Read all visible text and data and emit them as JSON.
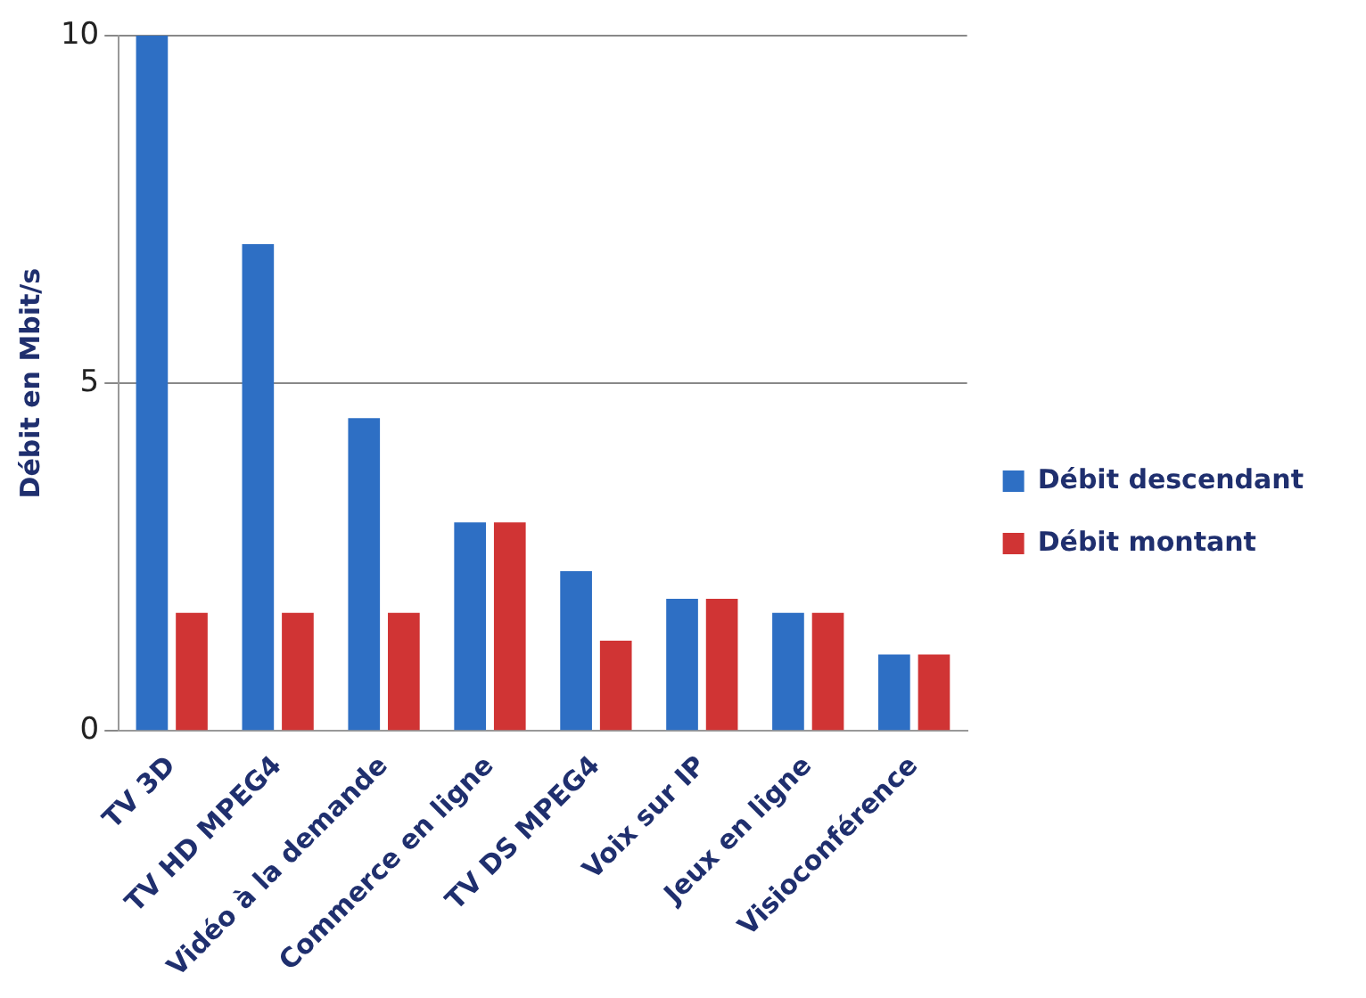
{
  "chart_data": {
    "type": "bar",
    "ylabel": "Débit en Mbit/s",
    "categories": [
      "TV 3D",
      "TV HD MPEG4",
      "Vidéo à la demande",
      "Commerce en ligne",
      "TV DS MPEG4",
      "Voix sur IP",
      "Jeux en ligne",
      "Visioconférence"
    ],
    "series": [
      {
        "name": "Débit descendant",
        "color": "#2e6fc4",
        "values": [
          10,
          7,
          4.5,
          3,
          2.3,
          1.9,
          1.7,
          1.1
        ]
      },
      {
        "name": "Débit montant",
        "color": "#d03434",
        "values": [
          1.7,
          1.7,
          1.7,
          3,
          1.3,
          1.9,
          1.7,
          1.1
        ]
      }
    ],
    "ylim": [
      0,
      10
    ],
    "yticks": [
      0,
      5,
      10
    ],
    "grid": "y",
    "legend": "right"
  }
}
